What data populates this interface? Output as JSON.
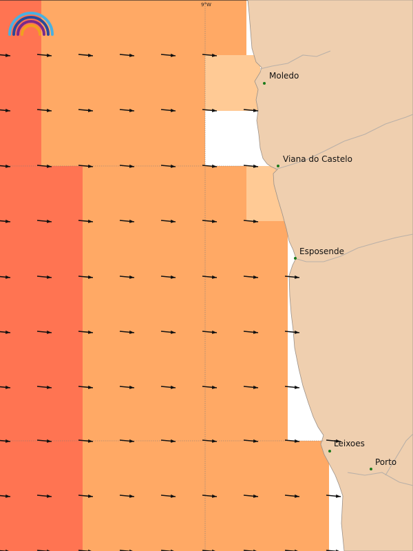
{
  "map": {
    "meridian_label": "9°W",
    "colors": {
      "land": "#efcfaf",
      "sea_none": "#ffffff",
      "cell_high": "#ff7452",
      "cell_mid": "#ffa965",
      "cell_low": "#ffca95",
      "arrow": "#111111",
      "city_dot": "#1a7a1a",
      "coast_line": "#b9b0a8",
      "grid_line": "#7a7a7a"
    },
    "places": [
      {
        "name": "Moledo"
      },
      {
        "name": "Viana do Castelo"
      },
      {
        "name": "Esposende"
      },
      {
        "name": "Leixoes"
      },
      {
        "name": "Porto"
      }
    ],
    "logo": {
      "icon": "rainbow-logo-icon"
    }
  }
}
